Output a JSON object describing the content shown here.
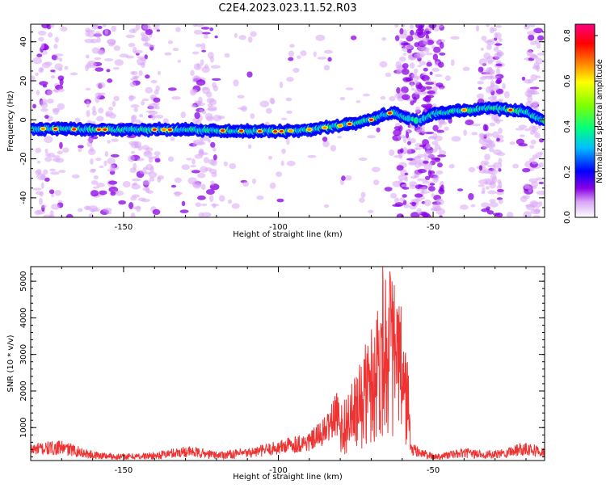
{
  "title": "C2E4.2023.023.11.52.R03",
  "chart_data": [
    {
      "type": "heatmap",
      "xlabel": "Height of straight line (km)",
      "ylabel": "Frequency (Hz)",
      "xlim": [
        -180,
        -14
      ],
      "ylim": [
        -50,
        49
      ],
      "xticks": [
        -150,
        -100,
        -50
      ],
      "yticks": [
        -40,
        -20,
        0,
        20,
        40
      ],
      "grid": false,
      "colorbar": {
        "label": "Normalized spectral amplitude",
        "range": [
          0,
          0.85
        ],
        "ticks": [
          0.0,
          0.2,
          0.4,
          0.6,
          0.8
        ],
        "colors": [
          "#ffffff",
          "#d9a6f5",
          "#8a00e6",
          "#0000ff",
          "#00bfff",
          "#00ff80",
          "#80ff00",
          "#ffff00",
          "#ff8000",
          "#ff0000",
          "#ff0080"
        ]
      },
      "ridge": {
        "name": "",
        "x": [
          -180,
          -160,
          -140,
          -120,
          -100,
          -90,
          -80,
          -70,
          -63,
          -60,
          -55,
          -50,
          -40,
          -30,
          -20,
          -14
        ],
        "y": [
          -4.5,
          -5,
          -5,
          -5.5,
          -6,
          -5,
          -3,
          0,
          4,
          2,
          -1,
          3,
          5,
          6,
          4,
          -1
        ]
      }
    },
    {
      "type": "line",
      "xlabel": "Height of straight line (km)",
      "ylabel": "SNR (10 * v/v)",
      "xlim": [
        -180,
        -14
      ],
      "ylim": [
        100,
        5400
      ],
      "xticks": [
        -150,
        -100,
        -50
      ],
      "yticks": [
        1000,
        2000,
        3000,
        4000,
        5000
      ],
      "grid": false,
      "color": "#ee3333",
      "series": [
        {
          "name": "",
          "x": [
            -180,
            -170,
            -160,
            -150,
            -140,
            -130,
            -120,
            -110,
            -100,
            -95,
            -90,
            -85,
            -80,
            -75,
            -72,
            -70,
            -68,
            -66,
            -64,
            -62,
            -60,
            -58,
            -57,
            -50,
            -45,
            -40,
            -30,
            -20,
            -14
          ],
          "y": [
            400,
            450,
            250,
            200,
            230,
            350,
            250,
            300,
            450,
            550,
            600,
            900,
            1500,
            2200,
            3000,
            3500,
            4200,
            5300,
            5000,
            4500,
            3800,
            2500,
            400,
            200,
            250,
            300,
            250,
            450,
            300
          ]
        }
      ]
    }
  ]
}
